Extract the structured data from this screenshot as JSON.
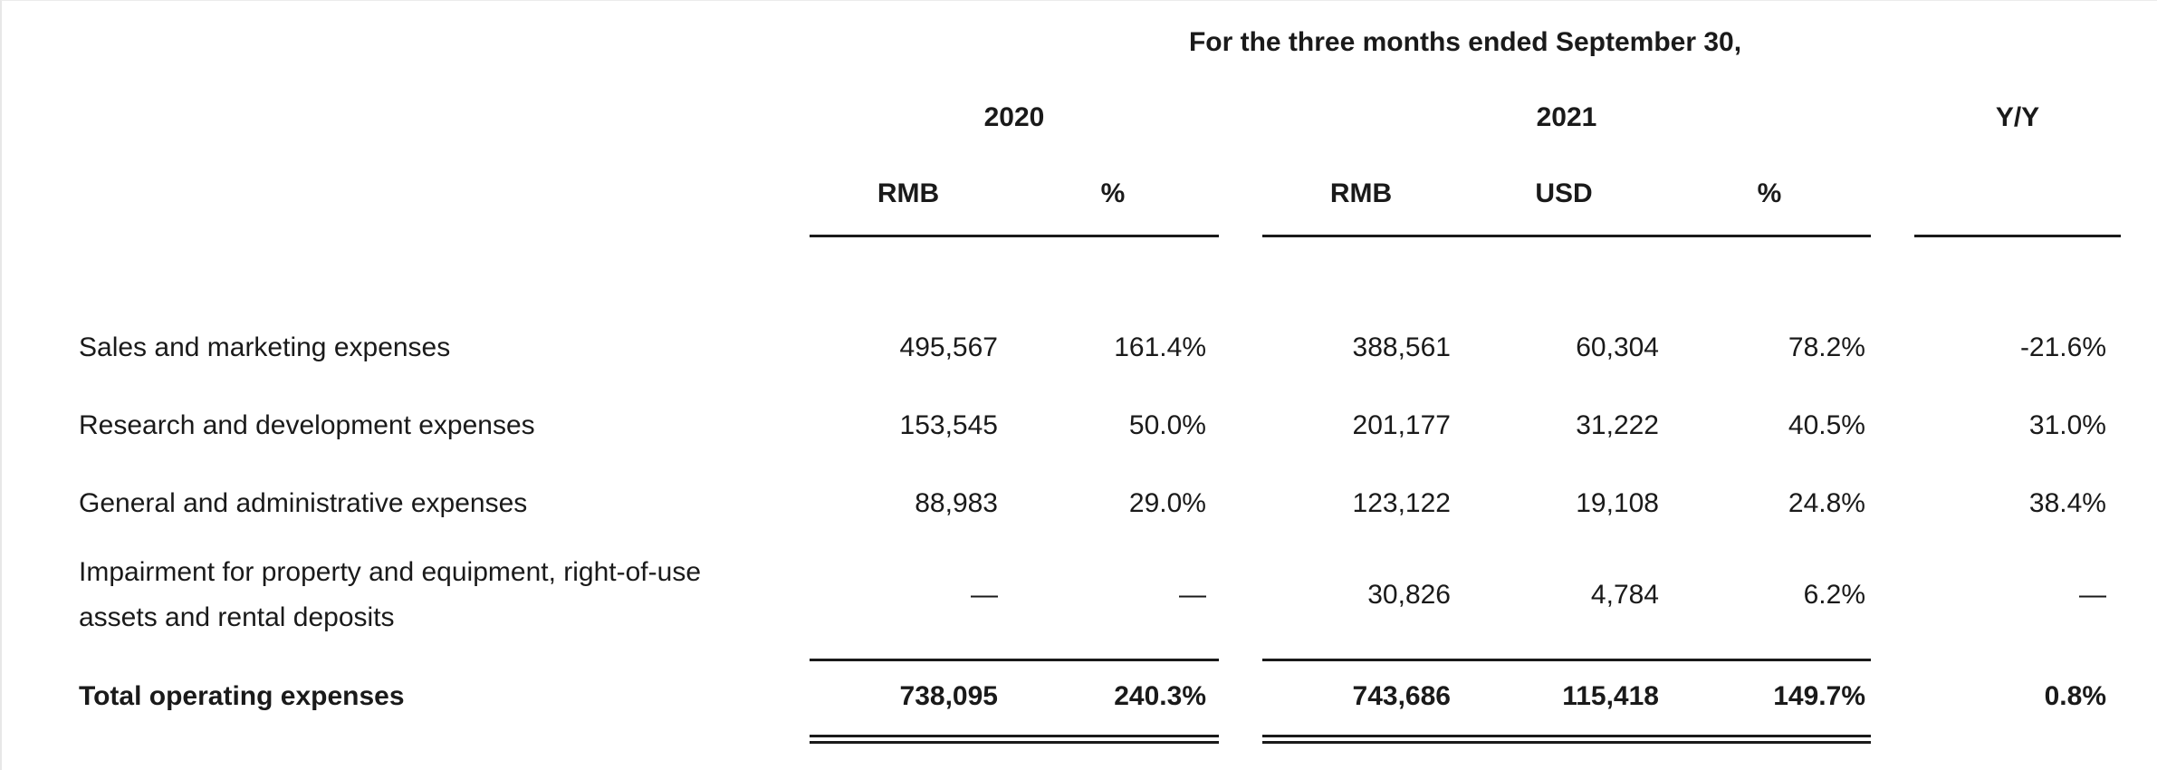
{
  "table": {
    "title": "For the three months ended September 30,",
    "col_groups": [
      {
        "label": "2020",
        "columns": [
          "RMB",
          "%"
        ]
      },
      {
        "label": "2021",
        "columns": [
          "RMB",
          "USD",
          "%"
        ]
      },
      {
        "label": "Y/Y",
        "columns": []
      }
    ],
    "rows": [
      {
        "label": "Sales and marketing expenses",
        "cells": [
          "495,567",
          "161.4%",
          "388,561",
          "60,304",
          "78.2%",
          "-21.6%"
        ]
      },
      {
        "label": "Research and development expenses",
        "cells": [
          "153,545",
          "50.0%",
          "201,177",
          "31,222",
          "40.5%",
          "31.0%"
        ]
      },
      {
        "label": "General and administrative expenses",
        "cells": [
          "88,983",
          "29.0%",
          "123,122",
          "19,108",
          "24.8%",
          "38.4%"
        ]
      },
      {
        "label": "Impairment for property and equipment, right-of-use assets and rental deposits",
        "cells": [
          "—",
          "—",
          "30,826",
          "4,784",
          "6.2%",
          "—"
        ]
      }
    ],
    "total": {
      "label": "Total operating expenses",
      "cells": [
        "738,095",
        "240.3%",
        "743,686",
        "115,418",
        "149.7%",
        "0.8%"
      ]
    }
  }
}
